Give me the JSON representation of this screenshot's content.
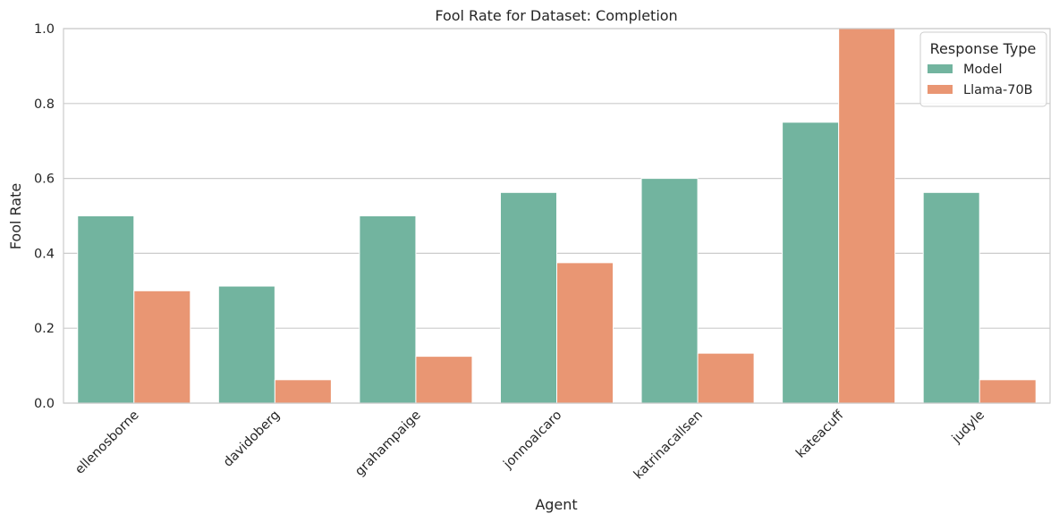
{
  "chart_data": {
    "type": "bar",
    "title": "Fool Rate for Dataset: Completion",
    "xlabel": "Agent",
    "ylabel": "Fool Rate",
    "ylim": [
      0,
      1.0
    ],
    "yticks": [
      "0.0",
      "0.2",
      "0.4",
      "0.6",
      "0.8",
      "1.0"
    ],
    "grid": true,
    "legend": {
      "title": "Response Type",
      "placement": "top-right"
    },
    "categories": [
      "ellenosborne",
      "davidoberg",
      "grahampaige",
      "jonnoalcaro",
      "katrinacallsen",
      "kateacuff",
      "judyle"
    ],
    "series": [
      {
        "name": "Model",
        "color": "#72b49f",
        "values": [
          0.5,
          0.3125,
          0.5,
          0.5625,
          0.6,
          0.75,
          0.5625
        ]
      },
      {
        "name": "Llama-70B",
        "color": "#e99673",
        "values": [
          0.3,
          0.0625,
          0.125,
          0.375,
          0.1333,
          1.0,
          0.0625
        ]
      }
    ]
  }
}
